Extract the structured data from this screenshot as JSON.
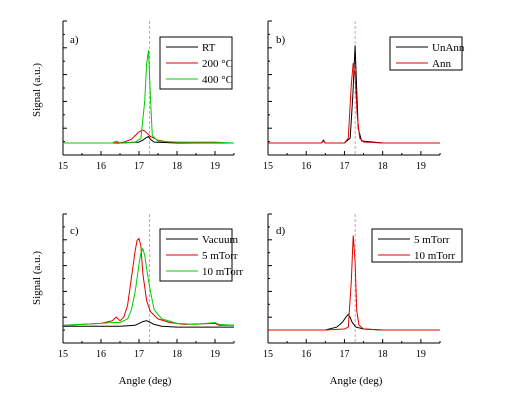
{
  "figure": {
    "ylabel": "Signal (a.u.)",
    "xlabel": "Angle (deg)"
  },
  "colors": {
    "black": "#000000",
    "red": "#e00000",
    "green": "#00cc00",
    "dashed_marker": "#e08080"
  },
  "chart_data": [
    {
      "type": "line",
      "panel": "a)",
      "xlim": [
        15,
        19.5
      ],
      "x_ticks": [
        "15",
        "16",
        "17",
        "18",
        "19"
      ],
      "marker_x": 17.28,
      "legend_position": "top-right",
      "ylabel": "Signal (a.u.)",
      "xlabel": "",
      "series": [
        {
          "name": "RT",
          "color": "#000000",
          "x": [
            15,
            16.5,
            17.0,
            17.1,
            17.2,
            17.25,
            17.3,
            17.4,
            18,
            19.5
          ],
          "y": [
            0.0,
            0.0,
            0.01,
            0.03,
            0.06,
            0.07,
            0.04,
            0.01,
            0.0,
            0.0
          ]
        },
        {
          "name": "200 °C",
          "color": "#e00000",
          "x": [
            15,
            16.3,
            16.6,
            16.8,
            16.9,
            17.0,
            17.1,
            17.15,
            17.2,
            17.3,
            17.5,
            17.8,
            18.5,
            19.5
          ],
          "y": [
            0.0,
            0.0,
            0.01,
            0.04,
            0.08,
            0.12,
            0.14,
            0.13,
            0.11,
            0.07,
            0.03,
            0.01,
            0.0,
            0.0
          ]
        },
        {
          "name": "400 °C",
          "color": "#00cc00",
          "x": [
            15,
            16.3,
            16.4,
            16.5,
            16.9,
            17.05,
            17.15,
            17.2,
            17.25,
            17.3,
            17.35,
            17.5,
            18.0,
            19.0,
            19.5
          ],
          "y": [
            0.0,
            0.0,
            0.02,
            0.0,
            0.01,
            0.05,
            0.45,
            0.85,
            1.0,
            0.5,
            0.08,
            0.02,
            0.01,
            0.01,
            0.0
          ]
        }
      ]
    },
    {
      "type": "line",
      "panel": "b)",
      "xlim": [
        15,
        19.5
      ],
      "x_ticks": [
        "15",
        "16",
        "17",
        "18",
        "19"
      ],
      "marker_x": 17.28,
      "legend_position": "top-right",
      "series": [
        {
          "name": "UnAnn",
          "color": "#000000",
          "x": [
            15,
            16.4,
            16.45,
            16.5,
            17.0,
            17.15,
            17.22,
            17.28,
            17.32,
            17.36,
            17.45,
            18,
            19.5
          ],
          "y": [
            0.0,
            0.0,
            0.03,
            0.0,
            0.0,
            0.05,
            0.5,
            1.0,
            0.55,
            0.15,
            0.02,
            0.0,
            0.0
          ]
        },
        {
          "name": "Ann",
          "color": "#e00000",
          "x": [
            15,
            16.4,
            16.45,
            16.5,
            17.0,
            17.1,
            17.18,
            17.23,
            17.28,
            17.33,
            17.4,
            17.5,
            18,
            19.1,
            19.5
          ],
          "y": [
            0.0,
            0.0,
            0.02,
            0.0,
            0.0,
            0.05,
            0.6,
            0.82,
            0.7,
            0.3,
            0.05,
            0.01,
            0.0,
            0.0,
            0.0
          ]
        }
      ]
    },
    {
      "type": "line",
      "panel": "c)",
      "xlim": [
        15,
        19.5
      ],
      "x_ticks": [
        "15",
        "16",
        "17",
        "18",
        "19"
      ],
      "marker_x": 17.28,
      "legend_position": "top-right",
      "ylabel": "Signal (a.u.)",
      "xlabel": "Angle (deg)",
      "series": [
        {
          "name": "Vacuum",
          "color": "#000000",
          "x": [
            15,
            16.5,
            16.9,
            17.0,
            17.1,
            17.2,
            17.3,
            17.4,
            17.6,
            18,
            19.5
          ],
          "y": [
            0.02,
            0.02,
            0.03,
            0.05,
            0.07,
            0.08,
            0.06,
            0.04,
            0.02,
            0.01,
            0.01
          ]
        },
        {
          "name": "5 mTorr",
          "color": "#e00000",
          "x": [
            15,
            15.5,
            16.0,
            16.3,
            16.4,
            16.5,
            16.6,
            16.7,
            16.8,
            16.9,
            16.95,
            17.0,
            17.05,
            17.1,
            17.2,
            17.3,
            17.5,
            17.8,
            18.2,
            19.0,
            19.1,
            19.5
          ],
          "y": [
            0.03,
            0.04,
            0.05,
            0.08,
            0.12,
            0.08,
            0.12,
            0.25,
            0.55,
            0.85,
            0.96,
            0.98,
            0.9,
            0.6,
            0.3,
            0.18,
            0.1,
            0.06,
            0.04,
            0.05,
            0.03,
            0.03
          ]
        },
        {
          "name": "10 mTorr",
          "color": "#00cc00",
          "x": [
            15,
            15.5,
            16.0,
            16.3,
            16.5,
            16.7,
            16.8,
            16.9,
            17.0,
            17.05,
            17.1,
            17.15,
            17.2,
            17.3,
            17.4,
            17.6,
            18.0,
            18.5,
            19.0,
            19.1,
            19.5
          ],
          "y": [
            0.03,
            0.04,
            0.05,
            0.06,
            0.06,
            0.1,
            0.2,
            0.4,
            0.7,
            0.82,
            0.87,
            0.8,
            0.65,
            0.4,
            0.2,
            0.1,
            0.05,
            0.04,
            0.06,
            0.04,
            0.03
          ]
        }
      ]
    },
    {
      "type": "line",
      "panel": "d)",
      "xlim": [
        15,
        19.5
      ],
      "x_ticks": [
        "15",
        "16",
        "17",
        "18",
        "19"
      ],
      "marker_x": 17.28,
      "legend_position": "top-right",
      "xlabel": "Angle (deg)",
      "series": [
        {
          "name": "5 mTorr",
          "color": "#000000",
          "x": [
            15,
            16.5,
            16.8,
            16.95,
            17.05,
            17.1,
            17.15,
            17.2,
            17.3,
            17.5,
            18,
            19.5
          ],
          "y": [
            0.0,
            0.0,
            0.03,
            0.08,
            0.14,
            0.16,
            0.13,
            0.08,
            0.03,
            0.01,
            0.0,
            0.0
          ]
        },
        {
          "name": "10 mTorr",
          "color": "#e00000",
          "x": [
            15,
            16.5,
            17.0,
            17.1,
            17.18,
            17.23,
            17.28,
            17.32,
            17.38,
            17.5,
            18,
            19.1,
            19.5
          ],
          "y": [
            0.0,
            0.0,
            0.01,
            0.03,
            0.5,
            0.97,
            0.7,
            0.2,
            0.05,
            0.01,
            0.0,
            0.0,
            0.0
          ]
        }
      ]
    }
  ]
}
